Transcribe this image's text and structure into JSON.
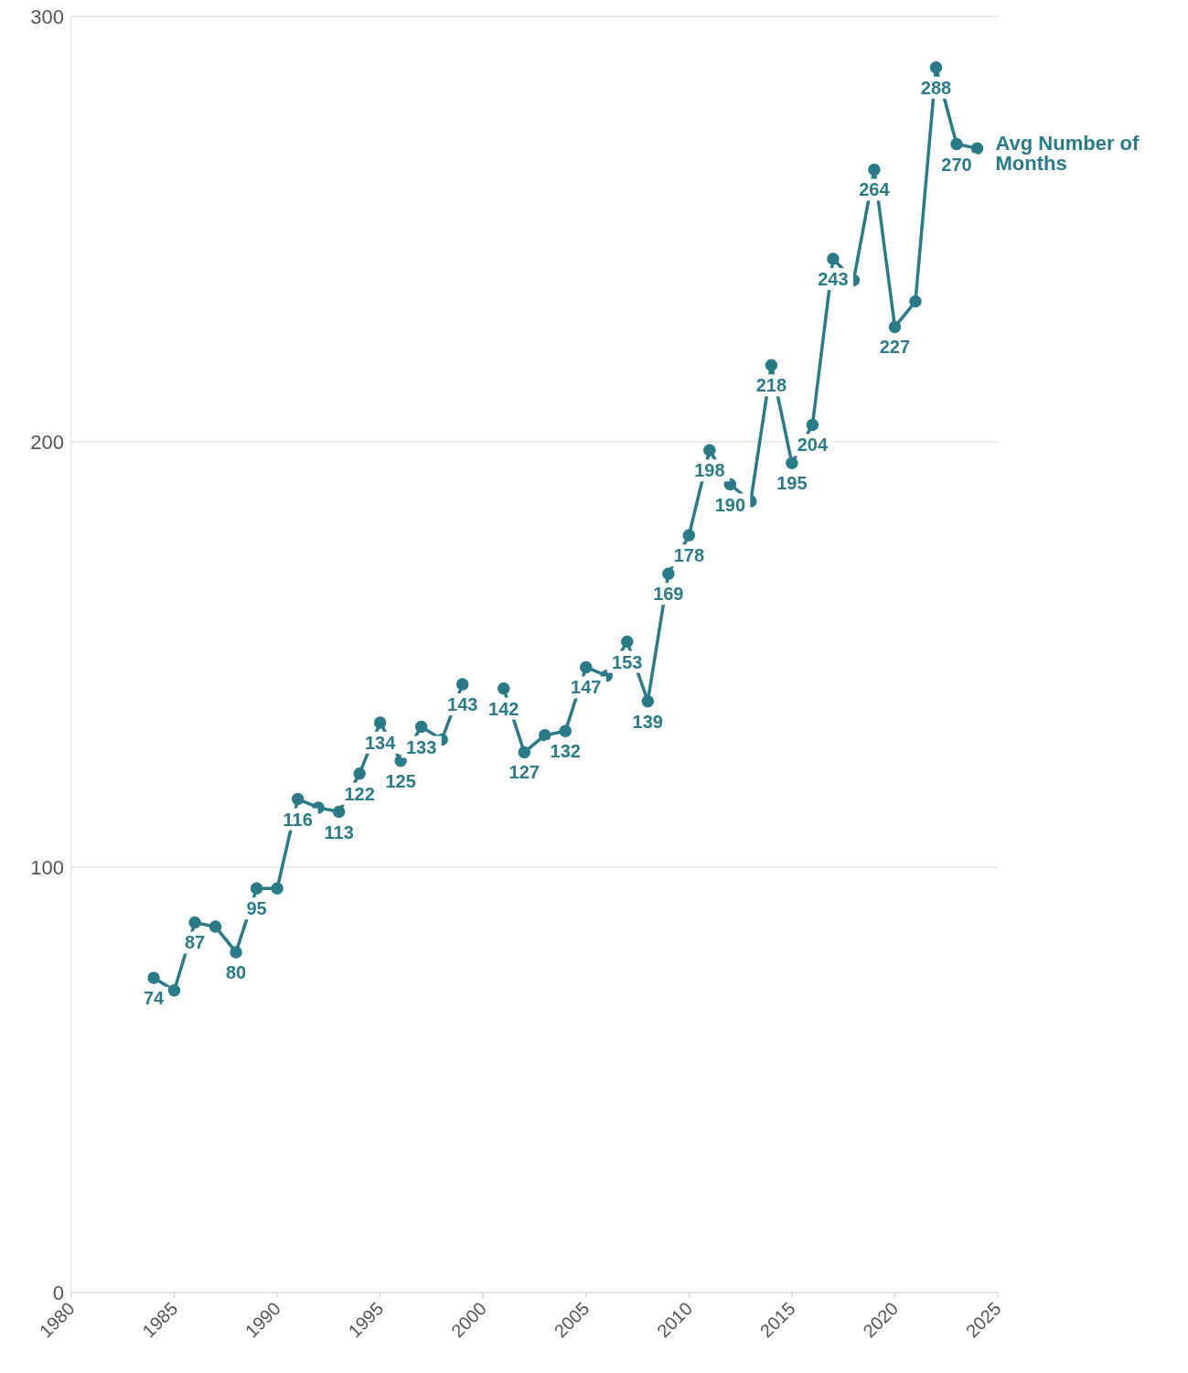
{
  "chart_data": {
    "type": "line",
    "x": [
      1984,
      1985,
      1986,
      1987,
      1988,
      1989,
      1990,
      1991,
      1992,
      1993,
      1994,
      1995,
      1996,
      1997,
      1998,
      1999,
      2000,
      2001,
      2002,
      2003,
      2004,
      2005,
      2006,
      2007,
      2008,
      2009,
      2010,
      2011,
      2012,
      2013,
      2014,
      2015,
      2016,
      2017,
      2018,
      2019,
      2020,
      2021,
      2022,
      2023,
      2024
    ],
    "series": [
      {
        "name": "Avg Number of Months",
        "color": "#2b7a87",
        "values": [
          74,
          71,
          87,
          86,
          80,
          95,
          95,
          116,
          114,
          113,
          122,
          134,
          125,
          133,
          130,
          143,
          null,
          142,
          127,
          131,
          132,
          147,
          145,
          153,
          139,
          169,
          178,
          198,
          190,
          186,
          218,
          195,
          204,
          243,
          238,
          264,
          227,
          233,
          288,
          270,
          269
        ],
        "value_labels": [
          "74",
          null,
          "87",
          null,
          "80",
          "95",
          null,
          "116",
          null,
          "113",
          "122",
          "134",
          "125",
          "133",
          null,
          "143",
          null,
          "142",
          "127",
          null,
          "132",
          "147",
          null,
          "153",
          "139",
          "169",
          "178",
          "198",
          "190",
          null,
          "218",
          "195",
          "204",
          "243",
          null,
          "264",
          "227",
          null,
          "288",
          "270",
          null
        ]
      }
    ],
    "xlim": [
      1980,
      2025
    ],
    "xticks": [
      1980,
      1985,
      1990,
      1995,
      2000,
      2005,
      2010,
      2015,
      2020,
      2025
    ],
    "ylim": [
      0,
      300
    ],
    "yticks": [
      0,
      100,
      200,
      300
    ],
    "grid": "y",
    "marker": "circle",
    "line_style": "solid"
  }
}
